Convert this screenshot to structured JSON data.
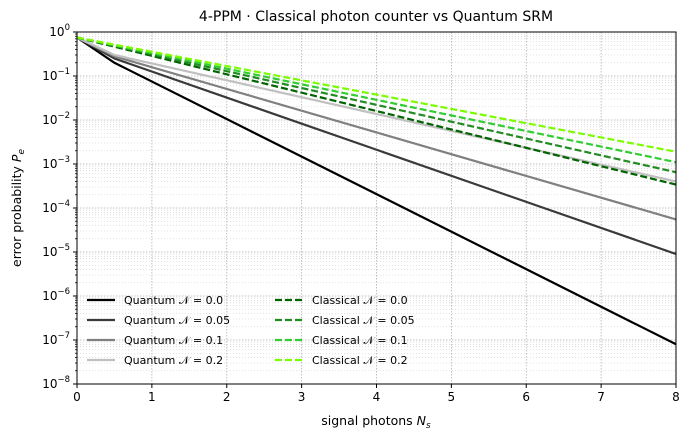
{
  "chart_data": {
    "type": "line",
    "title": "4-PPM · Classical photon counter vs Quantum SRM",
    "xlabel_text": "signal photons ",
    "xlabel_symbol": "N",
    "xlabel_sub": "s",
    "ylabel_text": "error probability ",
    "ylabel_symbol": "P",
    "ylabel_sub": "e",
    "xlim": [
      0,
      8
    ],
    "ylim": [
      1e-08,
      1
    ],
    "yscale": "log",
    "grid": true,
    "legend_position": "lower-left",
    "x_ticks": [
      "0",
      "1",
      "2",
      "3",
      "4",
      "5",
      "6",
      "7",
      "8"
    ],
    "y_ticks": [
      {
        "base": "10",
        "exp": "0"
      },
      {
        "base": "10",
        "exp": "−1"
      },
      {
        "base": "10",
        "exp": "−2"
      },
      {
        "base": "10",
        "exp": "−3"
      },
      {
        "base": "10",
        "exp": "−4"
      },
      {
        "base": "10",
        "exp": "−5"
      },
      {
        "base": "10",
        "exp": "−6"
      },
      {
        "base": "10",
        "exp": "−7"
      },
      {
        "base": "10",
        "exp": "−8"
      }
    ],
    "series": [
      {
        "name": "Quantum   𝒩 = 0.0",
        "group": "Quantum",
        "noise": "0.0",
        "color": "#000000",
        "dash": "solid",
        "x": [
          0,
          0.5,
          8
        ],
        "y": [
          0.75,
          0.2,
          8e-08
        ]
      },
      {
        "name": "Quantum   𝒩 = 0.05",
        "group": "Quantum",
        "noise": "0.05",
        "color": "#3a3a3a",
        "dash": "solid",
        "x": [
          0,
          0.5,
          8
        ],
        "y": [
          0.75,
          0.25,
          9e-06
        ]
      },
      {
        "name": "Quantum   𝒩 = 0.1",
        "group": "Quantum",
        "noise": "0.1",
        "color": "#808080",
        "dash": "solid",
        "x": [
          0,
          0.5,
          8
        ],
        "y": [
          0.75,
          0.28,
          5.5e-05
        ]
      },
      {
        "name": "Quantum   𝒩 = 0.2",
        "group": "Quantum",
        "noise": "0.2",
        "color": "#c0c0c0",
        "dash": "solid",
        "x": [
          0,
          0.5,
          8
        ],
        "y": [
          0.75,
          0.3,
          0.0004
        ]
      },
      {
        "name": "Classical  𝒩 = 0.0",
        "group": "Classical",
        "noise": "0.0",
        "color": "#006400",
        "dash": "dashed",
        "x": [
          0,
          8
        ],
        "y": [
          0.75,
          0.00034
        ]
      },
      {
        "name": "Classical  𝒩 = 0.05",
        "group": "Classical",
        "noise": "0.05",
        "color": "#228b22",
        "dash": "dashed",
        "x": [
          0,
          8
        ],
        "y": [
          0.75,
          0.00065
        ]
      },
      {
        "name": "Classical  𝒩 = 0.1",
        "group": "Classical",
        "noise": "0.1",
        "color": "#32cd32",
        "dash": "dashed",
        "x": [
          0,
          8
        ],
        "y": [
          0.75,
          0.0011
        ]
      },
      {
        "name": "Classical  𝒩 = 0.2",
        "group": "Classical",
        "noise": "0.2",
        "color": "#7cfc00",
        "dash": "dashed",
        "x": [
          0,
          8
        ],
        "y": [
          0.75,
          0.0019
        ]
      }
    ]
  }
}
